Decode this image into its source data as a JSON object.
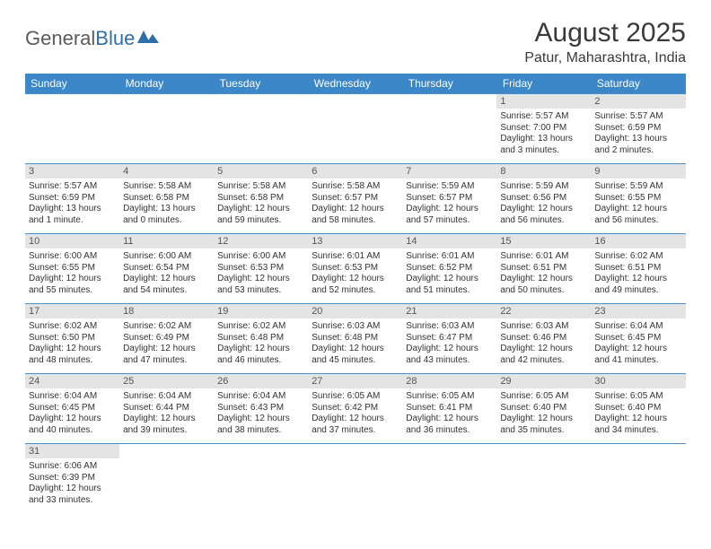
{
  "logo": {
    "general": "General",
    "blue": "Blue"
  },
  "title": "August 2025",
  "location": "Patur, Maharashtra, India",
  "colors": {
    "header_bg": "#3b87c8",
    "header_text": "#ffffff",
    "daynum_bg": "#e4e4e4",
    "border": "#4a8fc9",
    "title_text": "#3a3a3a",
    "logo_gray": "#5a5a5a",
    "logo_blue": "#2f6fa8"
  },
  "typography": {
    "title_fontsize": 30,
    "location_fontsize": 16,
    "dayhead_fontsize": 12,
    "daynum_fontsize": 11,
    "body_fontsize": 10
  },
  "day_headers": [
    "Sunday",
    "Monday",
    "Tuesday",
    "Wednesday",
    "Thursday",
    "Friday",
    "Saturday"
  ],
  "weeks": [
    [
      null,
      null,
      null,
      null,
      null,
      {
        "n": "1",
        "sunrise": "Sunrise: 5:57 AM",
        "sunset": "Sunset: 7:00 PM",
        "daylight": "Daylight: 13 hours and 3 minutes."
      },
      {
        "n": "2",
        "sunrise": "Sunrise: 5:57 AM",
        "sunset": "Sunset: 6:59 PM",
        "daylight": "Daylight: 13 hours and 2 minutes."
      }
    ],
    [
      {
        "n": "3",
        "sunrise": "Sunrise: 5:57 AM",
        "sunset": "Sunset: 6:59 PM",
        "daylight": "Daylight: 13 hours and 1 minute."
      },
      {
        "n": "4",
        "sunrise": "Sunrise: 5:58 AM",
        "sunset": "Sunset: 6:58 PM",
        "daylight": "Daylight: 13 hours and 0 minutes."
      },
      {
        "n": "5",
        "sunrise": "Sunrise: 5:58 AM",
        "sunset": "Sunset: 6:58 PM",
        "daylight": "Daylight: 12 hours and 59 minutes."
      },
      {
        "n": "6",
        "sunrise": "Sunrise: 5:58 AM",
        "sunset": "Sunset: 6:57 PM",
        "daylight": "Daylight: 12 hours and 58 minutes."
      },
      {
        "n": "7",
        "sunrise": "Sunrise: 5:59 AM",
        "sunset": "Sunset: 6:57 PM",
        "daylight": "Daylight: 12 hours and 57 minutes."
      },
      {
        "n": "8",
        "sunrise": "Sunrise: 5:59 AM",
        "sunset": "Sunset: 6:56 PM",
        "daylight": "Daylight: 12 hours and 56 minutes."
      },
      {
        "n": "9",
        "sunrise": "Sunrise: 5:59 AM",
        "sunset": "Sunset: 6:55 PM",
        "daylight": "Daylight: 12 hours and 56 minutes."
      }
    ],
    [
      {
        "n": "10",
        "sunrise": "Sunrise: 6:00 AM",
        "sunset": "Sunset: 6:55 PM",
        "daylight": "Daylight: 12 hours and 55 minutes."
      },
      {
        "n": "11",
        "sunrise": "Sunrise: 6:00 AM",
        "sunset": "Sunset: 6:54 PM",
        "daylight": "Daylight: 12 hours and 54 minutes."
      },
      {
        "n": "12",
        "sunrise": "Sunrise: 6:00 AM",
        "sunset": "Sunset: 6:53 PM",
        "daylight": "Daylight: 12 hours and 53 minutes."
      },
      {
        "n": "13",
        "sunrise": "Sunrise: 6:01 AM",
        "sunset": "Sunset: 6:53 PM",
        "daylight": "Daylight: 12 hours and 52 minutes."
      },
      {
        "n": "14",
        "sunrise": "Sunrise: 6:01 AM",
        "sunset": "Sunset: 6:52 PM",
        "daylight": "Daylight: 12 hours and 51 minutes."
      },
      {
        "n": "15",
        "sunrise": "Sunrise: 6:01 AM",
        "sunset": "Sunset: 6:51 PM",
        "daylight": "Daylight: 12 hours and 50 minutes."
      },
      {
        "n": "16",
        "sunrise": "Sunrise: 6:02 AM",
        "sunset": "Sunset: 6:51 PM",
        "daylight": "Daylight: 12 hours and 49 minutes."
      }
    ],
    [
      {
        "n": "17",
        "sunrise": "Sunrise: 6:02 AM",
        "sunset": "Sunset: 6:50 PM",
        "daylight": "Daylight: 12 hours and 48 minutes."
      },
      {
        "n": "18",
        "sunrise": "Sunrise: 6:02 AM",
        "sunset": "Sunset: 6:49 PM",
        "daylight": "Daylight: 12 hours and 47 minutes."
      },
      {
        "n": "19",
        "sunrise": "Sunrise: 6:02 AM",
        "sunset": "Sunset: 6:48 PM",
        "daylight": "Daylight: 12 hours and 46 minutes."
      },
      {
        "n": "20",
        "sunrise": "Sunrise: 6:03 AM",
        "sunset": "Sunset: 6:48 PM",
        "daylight": "Daylight: 12 hours and 45 minutes."
      },
      {
        "n": "21",
        "sunrise": "Sunrise: 6:03 AM",
        "sunset": "Sunset: 6:47 PM",
        "daylight": "Daylight: 12 hours and 43 minutes."
      },
      {
        "n": "22",
        "sunrise": "Sunrise: 6:03 AM",
        "sunset": "Sunset: 6:46 PM",
        "daylight": "Daylight: 12 hours and 42 minutes."
      },
      {
        "n": "23",
        "sunrise": "Sunrise: 6:04 AM",
        "sunset": "Sunset: 6:45 PM",
        "daylight": "Daylight: 12 hours and 41 minutes."
      }
    ],
    [
      {
        "n": "24",
        "sunrise": "Sunrise: 6:04 AM",
        "sunset": "Sunset: 6:45 PM",
        "daylight": "Daylight: 12 hours and 40 minutes."
      },
      {
        "n": "25",
        "sunrise": "Sunrise: 6:04 AM",
        "sunset": "Sunset: 6:44 PM",
        "daylight": "Daylight: 12 hours and 39 minutes."
      },
      {
        "n": "26",
        "sunrise": "Sunrise: 6:04 AM",
        "sunset": "Sunset: 6:43 PM",
        "daylight": "Daylight: 12 hours and 38 minutes."
      },
      {
        "n": "27",
        "sunrise": "Sunrise: 6:05 AM",
        "sunset": "Sunset: 6:42 PM",
        "daylight": "Daylight: 12 hours and 37 minutes."
      },
      {
        "n": "28",
        "sunrise": "Sunrise: 6:05 AM",
        "sunset": "Sunset: 6:41 PM",
        "daylight": "Daylight: 12 hours and 36 minutes."
      },
      {
        "n": "29",
        "sunrise": "Sunrise: 6:05 AM",
        "sunset": "Sunset: 6:40 PM",
        "daylight": "Daylight: 12 hours and 35 minutes."
      },
      {
        "n": "30",
        "sunrise": "Sunrise: 6:05 AM",
        "sunset": "Sunset: 6:40 PM",
        "daylight": "Daylight: 12 hours and 34 minutes."
      }
    ],
    [
      {
        "n": "31",
        "sunrise": "Sunrise: 6:06 AM",
        "sunset": "Sunset: 6:39 PM",
        "daylight": "Daylight: 12 hours and 33 minutes."
      },
      null,
      null,
      null,
      null,
      null,
      null
    ]
  ]
}
